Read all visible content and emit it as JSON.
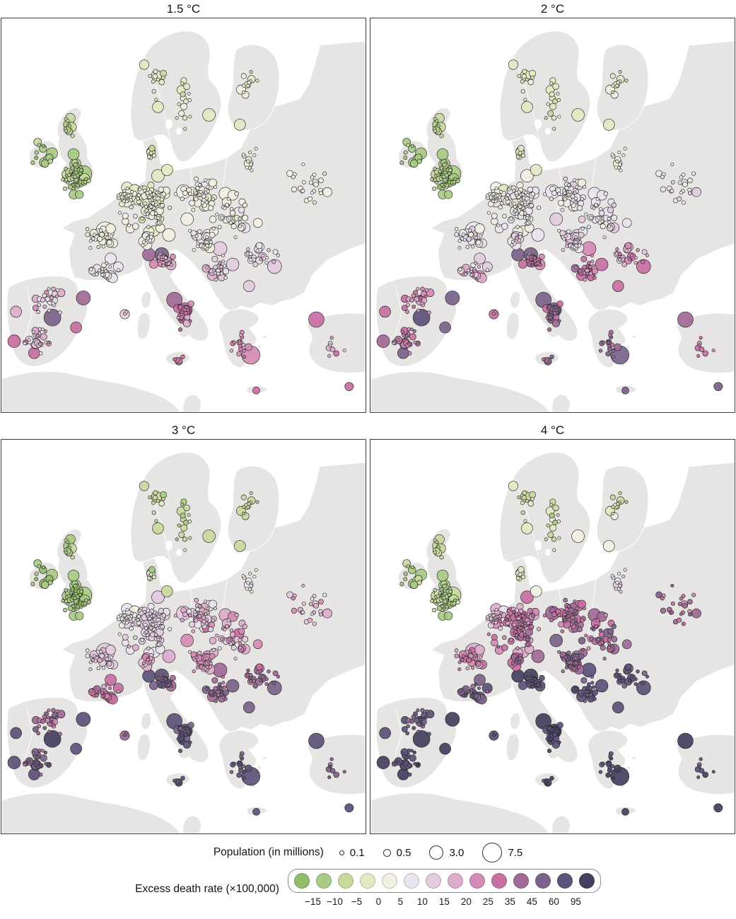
{
  "chart_data": {
    "type": "bubble-map-small-multiples",
    "description_visible_elements": "Four maps of Europe; each city is a circle sized by population and colored by excess death rate under a warming scenario",
    "panels": [
      {
        "title": "1.5 °C"
      },
      {
        "title": "2 °C"
      },
      {
        "title": "3 °C"
      },
      {
        "title": "4 °C"
      }
    ],
    "size_legend": {
      "label": "Population (in millions)",
      "items": [
        {
          "label": "0.1",
          "d": 5
        },
        {
          "label": "0.5",
          "d": 9
        },
        {
          "label": "3.0",
          "d": 18
        },
        {
          "label": "7.5",
          "d": 26
        }
      ]
    },
    "color_scale": {
      "label": "Excess death rate (×100,000)",
      "tick_labels": [
        "−15",
        "−10",
        "−5",
        "0",
        "5",
        "10",
        "15",
        "20",
        "25",
        "35",
        "45",
        "60",
        "95"
      ],
      "breaks": [
        -15,
        -10,
        -5,
        0,
        5,
        10,
        15,
        20,
        25,
        35,
        45,
        60,
        95
      ],
      "colors": [
        "#92bd69",
        "#a9cb83",
        "#c8d99e",
        "#e3eac3",
        "#f1f0e2",
        "#e9e4ef",
        "#e3cbe0",
        "#ddadcd",
        "#d48cb6",
        "#c770a3",
        "#a06b97",
        "#7c638b",
        "#5d5378",
        "#463f60"
      ]
    },
    "seed": 7,
    "bubble_r": [
      2.2,
      7.5
    ],
    "clusters": [
      {
        "id": "ireland",
        "cx": 0.112,
        "cy": 0.345,
        "sx": 0.028,
        "sy": 0.032,
        "n": 12,
        "v": [
          [
            -18,
            -8
          ],
          [
            -18,
            -8
          ],
          [
            -20,
            -10
          ],
          [
            -18,
            -6
          ]
        ]
      },
      {
        "id": "uk-england",
        "cx": 0.203,
        "cy": 0.4,
        "sx": 0.042,
        "sy": 0.05,
        "n": 55,
        "v": [
          [
            -16,
            -6
          ],
          [
            -16,
            -6
          ],
          [
            -18,
            -8
          ],
          [
            -16,
            -4
          ]
        ]
      },
      {
        "id": "uk-scotland",
        "cx": 0.184,
        "cy": 0.28,
        "sx": 0.02,
        "sy": 0.028,
        "n": 10,
        "v": [
          [
            -14,
            -5
          ],
          [
            -14,
            -5
          ],
          [
            -16,
            -6
          ],
          [
            -14,
            -3
          ]
        ]
      },
      {
        "id": "norway",
        "cx": 0.42,
        "cy": 0.16,
        "sx": 0.035,
        "sy": 0.07,
        "n": 12,
        "v": [
          [
            -6,
            2
          ],
          [
            -8,
            1
          ],
          [
            -12,
            -3
          ],
          [
            -12,
            0
          ]
        ]
      },
      {
        "id": "sweden",
        "cx": 0.5,
        "cy": 0.21,
        "sx": 0.035,
        "sy": 0.08,
        "n": 16,
        "v": [
          [
            -6,
            3
          ],
          [
            -8,
            2
          ],
          [
            -13,
            -3
          ],
          [
            -13,
            2
          ]
        ]
      },
      {
        "id": "finland",
        "cx": 0.68,
        "cy": 0.165,
        "sx": 0.038,
        "sy": 0.055,
        "n": 12,
        "v": [
          [
            -6,
            3
          ],
          [
            -8,
            2
          ],
          [
            -13,
            -4
          ],
          [
            -12,
            1
          ]
        ]
      },
      {
        "id": "baltics",
        "cx": 0.68,
        "cy": 0.36,
        "sx": 0.03,
        "sy": 0.04,
        "n": 12,
        "v": [
          [
            -4,
            4
          ],
          [
            -4,
            6
          ],
          [
            -5,
            8
          ],
          [
            -2,
            16
          ]
        ]
      },
      {
        "id": "denmark",
        "cx": 0.41,
        "cy": 0.35,
        "sx": 0.018,
        "sy": 0.022,
        "n": 8,
        "v": [
          [
            -8,
            1
          ],
          [
            -8,
            2
          ],
          [
            -11,
            0
          ],
          [
            -8,
            7
          ]
        ]
      },
      {
        "id": "benelux",
        "cx": 0.345,
        "cy": 0.45,
        "sx": 0.028,
        "sy": 0.028,
        "n": 28,
        "v": [
          [
            -4,
            4
          ],
          [
            -2,
            8
          ],
          [
            0,
            13
          ],
          [
            8,
            26
          ]
        ]
      },
      {
        "id": "germany-west",
        "cx": 0.41,
        "cy": 0.47,
        "sx": 0.042,
        "sy": 0.05,
        "n": 55,
        "v": [
          [
            -3,
            5
          ],
          [
            0,
            10
          ],
          [
            5,
            18
          ],
          [
            15,
            42
          ]
        ]
      },
      {
        "id": "poland-east-germany",
        "cx": 0.55,
        "cy": 0.45,
        "sx": 0.055,
        "sy": 0.045,
        "n": 45,
        "v": [
          [
            -2,
            6
          ],
          [
            2,
            12
          ],
          [
            8,
            22
          ],
          [
            20,
            48
          ]
        ]
      },
      {
        "id": "czech-austria-hungary",
        "cx": 0.55,
        "cy": 0.565,
        "sx": 0.05,
        "sy": 0.032,
        "n": 30,
        "v": [
          [
            0,
            8
          ],
          [
            5,
            16
          ],
          [
            12,
            28
          ],
          [
            26,
            62
          ]
        ]
      },
      {
        "id": "france-north",
        "cx": 0.27,
        "cy": 0.555,
        "sx": 0.045,
        "sy": 0.032,
        "n": 30,
        "v": [
          [
            -2,
            6
          ],
          [
            2,
            11
          ],
          [
            6,
            18
          ],
          [
            13,
            36
          ]
        ]
      },
      {
        "id": "france-south",
        "cx": 0.28,
        "cy": 0.64,
        "sx": 0.05,
        "sy": 0.028,
        "n": 22,
        "v": [
          [
            2,
            13
          ],
          [
            8,
            22
          ],
          [
            16,
            38
          ],
          [
            32,
            72
          ]
        ]
      },
      {
        "id": "iberia-north",
        "cx": 0.13,
        "cy": 0.715,
        "sx": 0.05,
        "sy": 0.035,
        "n": 26,
        "v": [
          [
            5,
            22
          ],
          [
            12,
            32
          ],
          [
            22,
            52
          ],
          [
            38,
            85
          ]
        ]
      },
      {
        "id": "iberia-south",
        "cx": 0.1,
        "cy": 0.82,
        "sx": 0.04,
        "sy": 0.04,
        "n": 24,
        "v": [
          [
            6,
            26
          ],
          [
            16,
            42
          ],
          [
            32,
            72
          ],
          [
            52,
            105
          ]
        ]
      },
      {
        "id": "italy-north",
        "cx": 0.45,
        "cy": 0.615,
        "sx": 0.038,
        "sy": 0.02,
        "n": 24,
        "v": [
          [
            8,
            26
          ],
          [
            16,
            42
          ],
          [
            30,
            62
          ],
          [
            46,
            96
          ]
        ]
      },
      {
        "id": "italy-south",
        "cx": 0.5,
        "cy": 0.755,
        "sx": 0.028,
        "sy": 0.04,
        "n": 20,
        "v": [
          [
            15,
            42
          ],
          [
            26,
            62
          ],
          [
            46,
            92
          ],
          [
            62,
            120
          ]
        ]
      },
      {
        "id": "balkans-west",
        "cx": 0.6,
        "cy": 0.63,
        "sx": 0.042,
        "sy": 0.04,
        "n": 24,
        "v": [
          [
            5,
            22
          ],
          [
            15,
            38
          ],
          [
            30,
            62
          ],
          [
            46,
            98
          ]
        ]
      },
      {
        "id": "romania-bulgaria",
        "cx": 0.72,
        "cy": 0.6,
        "sx": 0.05,
        "sy": 0.04,
        "n": 24,
        "v": [
          [
            3,
            16
          ],
          [
            10,
            32
          ],
          [
            26,
            56
          ],
          [
            42,
            92
          ]
        ]
      },
      {
        "id": "greece",
        "cx": 0.655,
        "cy": 0.83,
        "sx": 0.032,
        "sy": 0.042,
        "n": 16,
        "v": [
          [
            10,
            32
          ],
          [
            25,
            52
          ],
          [
            46,
            88
          ],
          [
            62,
            112
          ]
        ]
      },
      {
        "id": "turkey-nw",
        "cx": 0.91,
        "cy": 0.83,
        "sx": 0.038,
        "sy": 0.032,
        "n": 8,
        "v": [
          [
            10,
            32
          ],
          [
            20,
            46
          ],
          [
            40,
            82
          ],
          [
            55,
            106
          ]
        ]
      },
      {
        "id": "east-europe",
        "cx": 0.84,
        "cy": 0.42,
        "sx": 0.065,
        "sy": 0.065,
        "n": 24,
        "v": [
          [
            -2,
            7
          ],
          [
            0,
            13
          ],
          [
            6,
            26
          ],
          [
            16,
            56
          ]
        ]
      },
      {
        "id": "alps",
        "cx": 0.4,
        "cy": 0.565,
        "sx": 0.022,
        "sy": 0.016,
        "n": 10,
        "v": [
          [
            0,
            9
          ],
          [
            5,
            16
          ],
          [
            10,
            26
          ],
          [
            20,
            52
          ]
        ]
      },
      {
        "id": "sicily",
        "cx": 0.485,
        "cy": 0.865,
        "sx": 0.022,
        "sy": 0.012,
        "n": 5,
        "v": [
          [
            15,
            36
          ],
          [
            30,
            56
          ],
          [
            50,
            88
          ],
          [
            62,
            112
          ]
        ]
      },
      {
        "id": "balearics",
        "cx": 0.34,
        "cy": 0.748,
        "sx": 0.012,
        "sy": 0.006,
        "n": 3,
        "v": [
          [
            8,
            20
          ],
          [
            15,
            35
          ],
          [
            30,
            60
          ],
          [
            45,
            90
          ]
        ]
      },
      {
        "id": "west-central-scatter",
        "cx": 0.4,
        "cy": 0.49,
        "sx": 0.09,
        "sy": 0.075,
        "n": 40,
        "v": [
          [
            -3,
            5
          ],
          [
            0,
            10
          ],
          [
            5,
            18
          ],
          [
            14,
            40
          ]
        ]
      },
      {
        "id": "east-central-scatter",
        "cx": 0.63,
        "cy": 0.5,
        "sx": 0.085,
        "sy": 0.065,
        "n": 40,
        "v": [
          [
            -1,
            7
          ],
          [
            3,
            14
          ],
          [
            9,
            26
          ],
          [
            22,
            55
          ]
        ]
      }
    ],
    "major_cities": [
      {
        "x": 0.225,
        "y": 0.395,
        "r": 12,
        "v": [
          -12,
          -12,
          -14,
          -10
        ]
      },
      {
        "x": 0.203,
        "y": 0.37,
        "r": 8,
        "v": [
          -13,
          -13,
          -15,
          -11
        ]
      },
      {
        "x": 0.198,
        "y": 0.345,
        "r": 8,
        "v": [
          -13,
          -13,
          -15,
          -11
        ]
      },
      {
        "x": 0.139,
        "y": 0.343,
        "r": 8,
        "v": [
          -12,
          -12,
          -15,
          -12
        ]
      },
      {
        "x": 0.184,
        "y": 0.27,
        "r": 7,
        "v": [
          -12,
          -12,
          -14,
          -10
        ]
      },
      {
        "x": 0.285,
        "y": 0.54,
        "r": 13,
        "v": [
          3,
          8,
          12,
          16
        ]
      },
      {
        "x": 0.3,
        "y": 0.61,
        "r": 8,
        "v": [
          6,
          14,
          26,
          48
        ]
      },
      {
        "x": 0.3,
        "y": 0.655,
        "r": 8,
        "v": [
          10,
          20,
          38,
          66
        ]
      },
      {
        "x": 0.14,
        "y": 0.76,
        "r": 12,
        "v": [
          58,
          72,
          96,
          112
        ]
      },
      {
        "x": 0.225,
        "y": 0.71,
        "r": 10,
        "v": [
          40,
          56,
          86,
          106
        ]
      },
      {
        "x": 0.205,
        "y": 0.785,
        "r": 8,
        "v": [
          30,
          48,
          78,
          100
        ]
      },
      {
        "x": 0.09,
        "y": 0.85,
        "r": 8,
        "v": [
          28,
          46,
          76,
          98
        ]
      },
      {
        "x": 0.04,
        "y": 0.745,
        "r": 8,
        "v": [
          18,
          34,
          62,
          88
        ]
      },
      {
        "x": 0.035,
        "y": 0.82,
        "r": 9,
        "v": [
          25,
          42,
          72,
          96
        ]
      },
      {
        "x": 0.44,
        "y": 0.6,
        "r": 10,
        "v": [
          45,
          56,
          82,
          102
        ]
      },
      {
        "x": 0.405,
        "y": 0.6,
        "r": 9,
        "v": [
          35,
          50,
          76,
          96
        ]
      },
      {
        "x": 0.475,
        "y": 0.715,
        "r": 11,
        "v": [
          40,
          56,
          82,
          106
        ]
      },
      {
        "x": 0.505,
        "y": 0.74,
        "r": 10,
        "v": [
          32,
          48,
          78,
          102
        ]
      },
      {
        "x": 0.685,
        "y": 0.855,
        "r": 13,
        "v": [
          22,
          45,
          70,
          100
        ]
      },
      {
        "x": 0.865,
        "y": 0.765,
        "r": 11,
        "v": [
          25,
          42,
          70,
          96
        ]
      },
      {
        "x": 0.75,
        "y": 0.63,
        "r": 10,
        "v": [
          12,
          26,
          48,
          82
        ]
      },
      {
        "x": 0.68,
        "y": 0.68,
        "r": 8,
        "v": [
          10,
          25,
          48,
          80
        ]
      },
      {
        "x": 0.635,
        "y": 0.625,
        "r": 9,
        "v": [
          12,
          28,
          50,
          85
        ]
      },
      {
        "x": 0.555,
        "y": 0.565,
        "r": 10,
        "v": [
          8,
          16,
          30,
          60
        ]
      },
      {
        "x": 0.6,
        "y": 0.585,
        "r": 10,
        "v": [
          10,
          20,
          40,
          70
        ]
      },
      {
        "x": 0.51,
        "y": 0.51,
        "r": 9,
        "v": [
          4,
          11,
          22,
          48
        ]
      },
      {
        "x": 0.615,
        "y": 0.445,
        "r": 9,
        "v": [
          2,
          8,
          18,
          42
        ]
      },
      {
        "x": 0.5,
        "y": 0.44,
        "r": 10,
        "v": [
          0,
          6,
          14,
          35
        ]
      },
      {
        "x": 0.43,
        "y": 0.4,
        "r": 9,
        "v": [
          -2,
          4,
          10,
          28
        ]
      },
      {
        "x": 0.46,
        "y": 0.55,
        "r": 9,
        "v": [
          2,
          8,
          18,
          40
        ]
      },
      {
        "x": 0.405,
        "y": 0.49,
        "r": 8,
        "v": [
          0,
          6,
          14,
          34
        ]
      },
      {
        "x": 0.385,
        "y": 0.46,
        "r": 9,
        "v": [
          -1,
          5,
          12,
          30
        ]
      },
      {
        "x": 0.345,
        "y": 0.465,
        "r": 8,
        "v": [
          0,
          5,
          10,
          22
        ]
      },
      {
        "x": 0.345,
        "y": 0.43,
        "r": 8,
        "v": [
          -2,
          3,
          8,
          18
        ]
      },
      {
        "x": 0.455,
        "y": 0.385,
        "r": 8,
        "v": [
          -5,
          -2,
          -6,
          4
        ]
      },
      {
        "x": 0.57,
        "y": 0.245,
        "r": 9,
        "v": [
          -4,
          -2,
          -6,
          2
        ]
      },
      {
        "x": 0.43,
        "y": 0.225,
        "r": 8,
        "v": [
          -5,
          -4,
          -9,
          -2
        ]
      },
      {
        "x": 0.655,
        "y": 0.27,
        "r": 8,
        "v": [
          -4,
          -3,
          -8,
          0
        ]
      },
      {
        "x": 0.4,
        "y": 0.575,
        "r": 7,
        "v": [
          3,
          9,
          16,
          32
        ]
      },
      {
        "x": 0.955,
        "y": 0.935,
        "r": 6,
        "v": [
          28,
          46,
          75,
          98
        ]
      },
      {
        "x": 0.7,
        "y": 0.945,
        "r": 5,
        "v": [
          25,
          45,
          75,
          100
        ]
      }
    ]
  }
}
